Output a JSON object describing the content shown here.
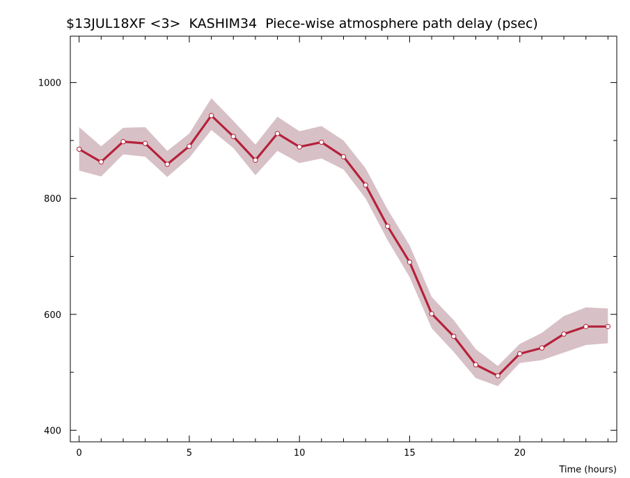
{
  "chart_data": {
    "type": "line",
    "title": "$13JUL18XF <3>  KASHIM34  Piece-wise atmosphere path delay (psec)",
    "xlabel": "Time (hours)",
    "ylabel": "",
    "xlim": [
      -0.4,
      24.4
    ],
    "ylim": [
      380,
      1080
    ],
    "x_ticks": [
      0,
      5,
      10,
      15,
      20
    ],
    "y_ticks": [
      400,
      600,
      800,
      1000
    ],
    "x_tick_labels": [
      "0",
      "5",
      "10",
      "15",
      "20"
    ],
    "y_tick_labels": [
      "400",
      "600",
      "800",
      "1000"
    ],
    "grid": false,
    "series": [
      {
        "x": [
          0,
          1,
          2,
          3,
          4,
          5,
          6,
          7,
          8,
          9,
          10,
          11,
          12,
          13,
          14,
          15,
          16,
          17,
          18,
          19,
          20,
          21,
          22,
          23,
          24
        ],
        "values": [
          885,
          863,
          898,
          895,
          859,
          890,
          943,
          907,
          866,
          912,
          889,
          897,
          872,
          823,
          752,
          690,
          601,
          562,
          513,
          494,
          532,
          542,
          566,
          579,
          579
        ],
        "upper": [
          923,
          890,
          922,
          923,
          882,
          912,
          973,
          934,
          893,
          941,
          916,
          925,
          900,
          852,
          781,
          719,
          630,
          590,
          540,
          511,
          549,
          568,
          597,
          612,
          610
        ],
        "lower": [
          848,
          838,
          876,
          872,
          837,
          870,
          918,
          887,
          840,
          882,
          861,
          869,
          850,
          800,
          728,
          664,
          576,
          535,
          490,
          476,
          516,
          521,
          534,
          547,
          550
        ]
      }
    ],
    "colors": {
      "line": "#b5213a",
      "band": "#d7c1c6",
      "marker_fill": "#ffffff"
    }
  }
}
